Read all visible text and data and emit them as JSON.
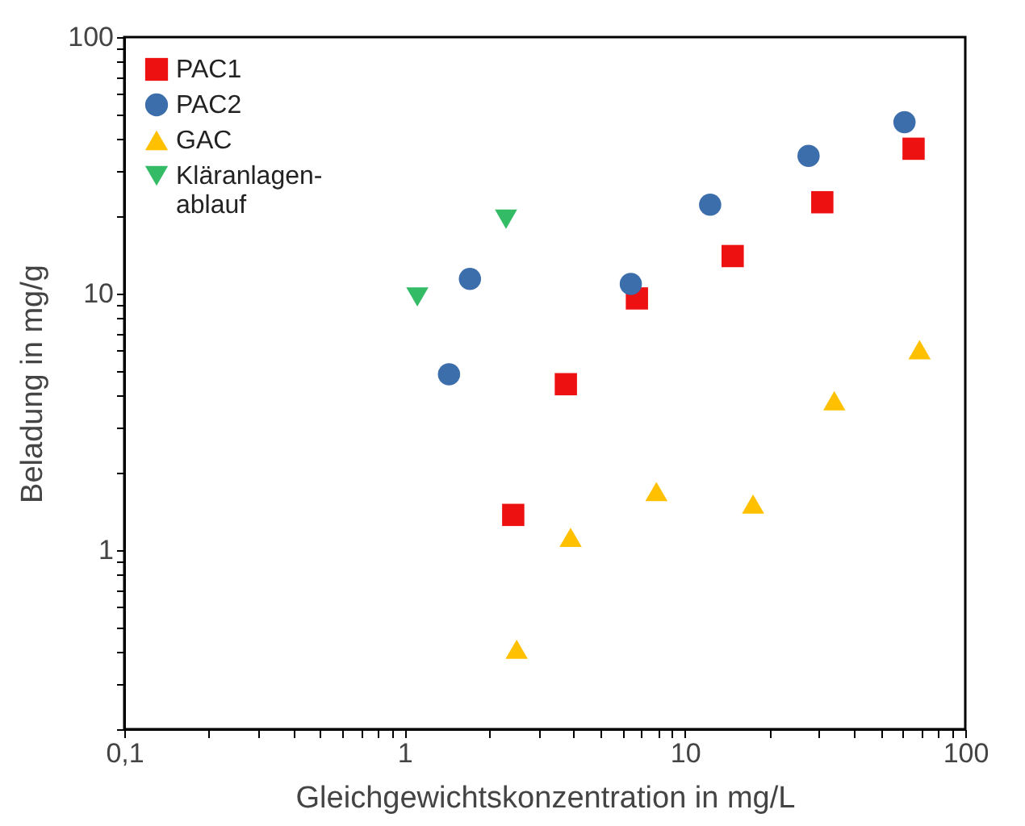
{
  "chart_data": {
    "type": "scatter",
    "xlabel": "Gleichgewichtskonzentration in mg/L",
    "ylabel": "Beladung in mg/g",
    "log": "xy",
    "grid": false,
    "legend": "top left",
    "xlim": [
      0.1,
      100
    ],
    "ylim": [
      0.2,
      100
    ],
    "xticks": [
      {
        "value": 0.1,
        "label": "0,1"
      },
      {
        "value": 0.2,
        "label": null
      },
      {
        "value": 0.3,
        "label": null
      },
      {
        "value": 0.4,
        "label": null
      },
      {
        "value": 0.5,
        "label": null
      },
      {
        "value": 0.6,
        "label": null
      },
      {
        "value": 0.7,
        "label": null
      },
      {
        "value": 0.8,
        "label": null
      },
      {
        "value": 0.9,
        "label": null
      },
      1,
      {
        "value": 2,
        "label": null
      },
      {
        "value": 3,
        "label": null
      },
      {
        "value": 4,
        "label": null
      },
      {
        "value": 5,
        "label": null
      },
      {
        "value": 6,
        "label": null
      },
      {
        "value": 7,
        "label": null
      },
      {
        "value": 8,
        "label": null
      },
      {
        "value": 9,
        "label": null
      },
      10,
      {
        "value": 20,
        "label": null
      },
      {
        "value": 30,
        "label": null
      },
      {
        "value": 40,
        "label": null
      },
      {
        "value": 50,
        "label": null
      },
      {
        "value": 60,
        "label": null
      },
      {
        "value": 70,
        "label": null
      },
      {
        "value": 80,
        "label": null
      },
      {
        "value": 90,
        "label": null
      },
      100
    ],
    "yticks": [
      {
        "value": 0.2,
        "label": null
      },
      {
        "value": 0.3,
        "label": null
      },
      {
        "value": 0.4,
        "label": null
      },
      {
        "value": 0.5,
        "label": null
      },
      {
        "value": 0.6,
        "label": null
      },
      {
        "value": 0.7,
        "label": null
      },
      {
        "value": 0.8,
        "label": null
      },
      {
        "value": 0.9,
        "label": null
      },
      1,
      {
        "value": 2,
        "label": null
      },
      {
        "value": 3,
        "label": null
      },
      {
        "value": 4,
        "label": null
      },
      {
        "value": 5,
        "label": null
      },
      {
        "value": 6,
        "label": null
      },
      {
        "value": 7,
        "label": null
      },
      {
        "value": 8,
        "label": null
      },
      {
        "value": 9,
        "label": null
      },
      10,
      {
        "value": 20,
        "label": null
      },
      {
        "value": 30,
        "label": null
      },
      {
        "value": 40,
        "label": null
      },
      {
        "value": 50,
        "label": null
      },
      {
        "value": 60,
        "label": null
      },
      {
        "value": 70,
        "label": null
      },
      {
        "value": 80,
        "label": null
      },
      {
        "value": 90,
        "label": null
      },
      100
    ],
    "series": [
      {
        "name": "PAC1",
        "color": "#ee1111",
        "marker": "square",
        "x": [
          2.44,
          3.76,
          6.74,
          14.8,
          30.9,
          65.4
        ],
        "values": [
          1.37,
          4.43,
          9.57,
          14.0,
          22.7,
          36.7
        ]
      },
      {
        "name": "PAC2",
        "color": "#3b6eaa",
        "marker": "circle",
        "x": [
          1.44,
          1.71,
          6.41,
          12.3,
          27.6,
          60.7
        ],
        "values": [
          4.84,
          11.4,
          10.9,
          22.2,
          34.4,
          46.6
        ]
      },
      {
        "name": "GAC",
        "color": "#ffc000",
        "marker": "triangle",
        "x": [
          2.51,
          3.91,
          7.91,
          17.5,
          34.1,
          68.7
        ],
        "values": [
          0.41,
          1.12,
          1.69,
          1.51,
          3.82,
          6.04
        ]
      },
      {
        "name": "Kläranlagen-\nablauf",
        "color": "#33bb66",
        "marker": "triangle-down",
        "x": [
          1.11,
          2.3
        ],
        "values": [
          9.7,
          19.5
        ]
      }
    ]
  }
}
